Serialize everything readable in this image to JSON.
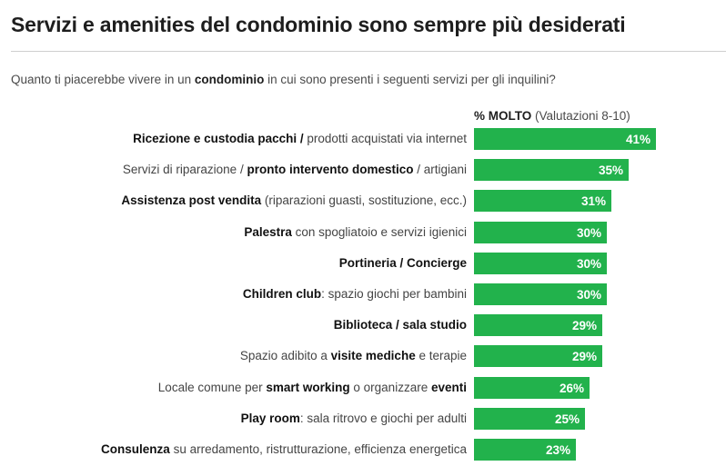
{
  "header": {
    "title": "Servizi e amenities del condominio sono sempre più desiderati",
    "subtitle_pre": "Quanto ti piacerebbe vivere in un ",
    "subtitle_bold": "condominio",
    "subtitle_post": " in cui sono presenti i seguenti servizi per gli inquilini?",
    "column_header_bold": "% MOLTO",
    "column_header_rest": " (Valutazioni 8-10)"
  },
  "colors": {
    "bar": "#22b24c",
    "value_text": "#ffffff"
  },
  "chart_data": {
    "type": "bar",
    "orientation": "horizontal",
    "categories": [
      "Ricezione e custodia pacchi / prodotti acquistati via internet",
      "Servizi di riparazione / pronto intervento domestico / artigiani",
      "Assistenza post vendita (riparazioni guasti, sostituzione, ecc.)",
      "Palestra con spogliatoio e servizi igienici",
      "Portineria / Concierge",
      "Children club: spazio giochi per bambini",
      "Biblioteca / sala studio",
      "Spazio adibito a visite mediche e terapie",
      "Locale comune per smart working o organizzare eventi",
      "Play room: sala ritrovo e giochi per adulti",
      "Consulenza su arredamento, ristrutturazione, efficienza energetica"
    ],
    "label_parts": [
      [
        {
          "t": "Ricezione e custodia pacchi /",
          "b": true
        },
        {
          "t": " prodotti acquistati via internet",
          "b": false
        }
      ],
      [
        {
          "t": "Servizi di riparazione / ",
          "b": false
        },
        {
          "t": "pronto intervento domestico",
          "b": true
        },
        {
          "t": " / artigiani",
          "b": false
        }
      ],
      [
        {
          "t": "Assistenza post vendita",
          "b": true
        },
        {
          "t": " (riparazioni guasti, sostituzione, ecc.)",
          "b": false
        }
      ],
      [
        {
          "t": "Palestra",
          "b": true
        },
        {
          "t": " con spogliatoio e servizi igienici",
          "b": false
        }
      ],
      [
        {
          "t": "Portineria / Concierge",
          "b": true
        }
      ],
      [
        {
          "t": "Children club",
          "b": true
        },
        {
          "t": ": spazio giochi per bambini",
          "b": false
        }
      ],
      [
        {
          "t": "Biblioteca / sala studio",
          "b": true
        }
      ],
      [
        {
          "t": "Spazio adibito a ",
          "b": false
        },
        {
          "t": "visite mediche",
          "b": true
        },
        {
          "t": " e terapie",
          "b": false
        }
      ],
      [
        {
          "t": "Locale comune per ",
          "b": false
        },
        {
          "t": "smart working",
          "b": true
        },
        {
          "t": " o organizzare ",
          "b": false
        },
        {
          "t": "eventi",
          "b": true
        }
      ],
      [
        {
          "t": "Play room",
          "b": true
        },
        {
          "t": ": sala ritrovo e giochi per adulti",
          "b": false
        }
      ],
      [
        {
          "t": "Consulenza",
          "b": true
        },
        {
          "t": " su arredamento, ristrutturazione, efficienza energetica",
          "b": false
        }
      ]
    ],
    "values": [
      41,
      35,
      31,
      30,
      30,
      30,
      29,
      29,
      26,
      25,
      23
    ],
    "value_labels": [
      "41%",
      "35%",
      "31%",
      "30%",
      "30%",
      "30%",
      "29%",
      "29%",
      "26%",
      "25%",
      "23%"
    ],
    "unit": "%"
  }
}
